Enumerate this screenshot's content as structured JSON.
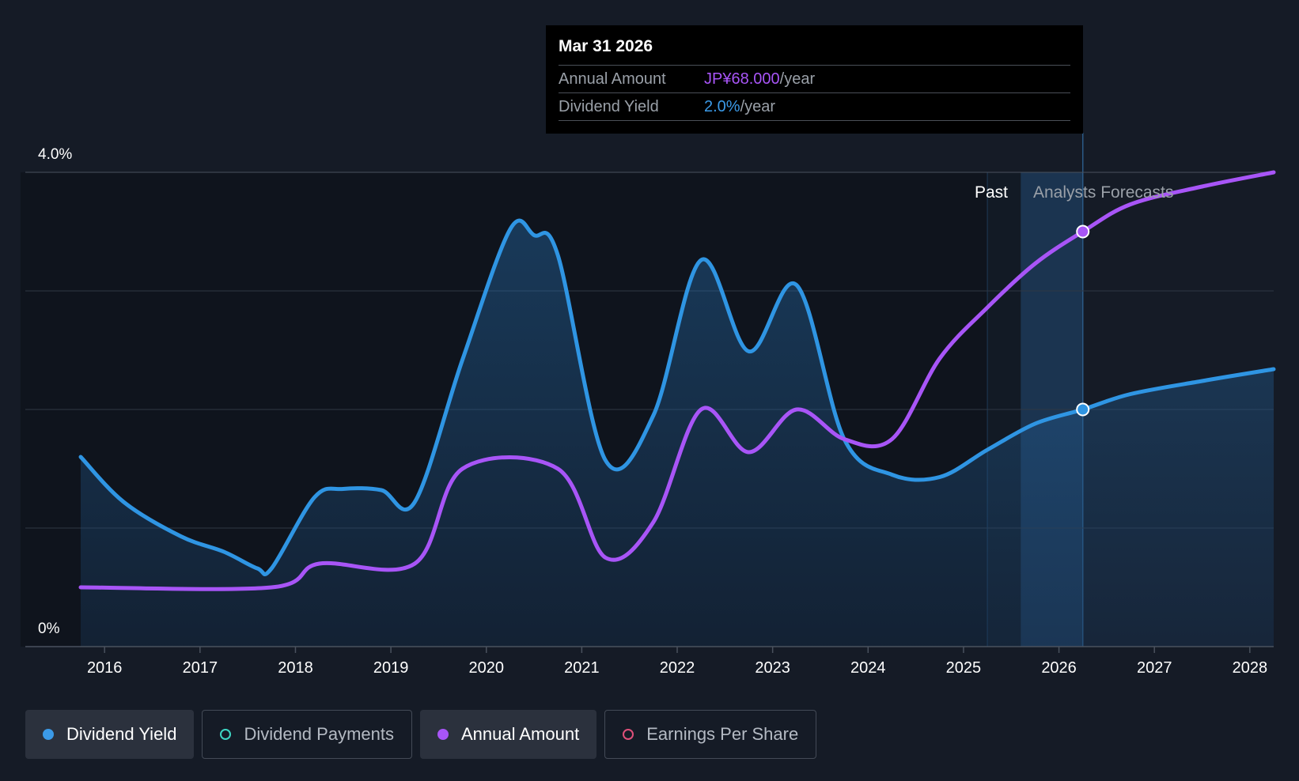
{
  "tooltip": {
    "date": "Mar 31 2026",
    "annual_label": "Annual Amount",
    "annual_value": "JP¥68.000",
    "annual_unit": "/year",
    "yield_label": "Dividend Yield",
    "yield_value": "2.0%",
    "yield_unit": "/year"
  },
  "regions": {
    "past_label": "Past",
    "forecast_label": "Analysts Forecasts"
  },
  "legend": [
    {
      "label": "Dividend Yield",
      "active": true,
      "filled": true,
      "color": "#3b9ae8",
      "name": "legend-dividend-yield"
    },
    {
      "label": "Dividend Payments",
      "active": false,
      "filled": false,
      "color": "#3ed6c4",
      "name": "legend-dividend-payments"
    },
    {
      "label": "Annual Amount",
      "active": true,
      "filled": true,
      "color": "#a855f7",
      "name": "legend-annual-amount"
    },
    {
      "label": "Earnings Per Share",
      "active": false,
      "filled": false,
      "color": "#e0507a",
      "name": "legend-earnings-per-share"
    }
  ],
  "colors": {
    "background": "#151b26",
    "dividend_yield": "#2f95e3",
    "annual_amount": "#a855f7",
    "grid": "#2f3744",
    "axis_text": "#ffffff"
  },
  "chart_data": {
    "type": "line",
    "title": "",
    "x_range": [
      2015.7,
      2028.25
    ],
    "x_ticks": [
      2016,
      2017,
      2018,
      2019,
      2020,
      2021,
      2022,
      2023,
      2024,
      2025,
      2026,
      2027,
      2028
    ],
    "y_range": [
      0,
      4.0
    ],
    "y_labels": [
      {
        "value": 4.0,
        "label": "4.0%"
      },
      {
        "value": 0,
        "label": "0%"
      }
    ],
    "gridlines": [
      4.0,
      3.0,
      2.0,
      1.0
    ],
    "forecast_start": 2025.25,
    "past_band_end": 2025.6,
    "highlight_x": 2026.25,
    "series": [
      {
        "name": "Dividend Yield",
        "unit": "%",
        "area": true,
        "points": [
          [
            2015.75,
            1.6
          ],
          [
            2016.2,
            1.22
          ],
          [
            2016.8,
            0.93
          ],
          [
            2017.25,
            0.8
          ],
          [
            2017.6,
            0.66
          ],
          [
            2017.75,
            0.66
          ],
          [
            2018.2,
            1.26
          ],
          [
            2018.5,
            1.33
          ],
          [
            2018.9,
            1.32
          ],
          [
            2019.25,
            1.22
          ],
          [
            2019.75,
            2.42
          ],
          [
            2020.25,
            3.52
          ],
          [
            2020.5,
            3.47
          ],
          [
            2020.75,
            3.3
          ],
          [
            2021.25,
            1.57
          ],
          [
            2021.75,
            1.95
          ],
          [
            2022.25,
            3.26
          ],
          [
            2022.75,
            2.49
          ],
          [
            2023.25,
            3.05
          ],
          [
            2023.75,
            1.75
          ],
          [
            2024.25,
            1.45
          ],
          [
            2024.75,
            1.43
          ],
          [
            2025.25,
            1.66
          ],
          [
            2025.75,
            1.88
          ],
          [
            2026.25,
            2.0
          ],
          [
            2026.75,
            2.13
          ],
          [
            2027.5,
            2.24
          ],
          [
            2028.25,
            2.34
          ]
        ]
      },
      {
        "name": "Annual Amount",
        "unit": "JP¥",
        "area": false,
        "points": [
          [
            2015.75,
            0.5
          ],
          [
            2017.75,
            0.5
          ],
          [
            2018.25,
            0.7
          ],
          [
            2019.25,
            0.7
          ],
          [
            2019.75,
            1.5
          ],
          [
            2020.75,
            1.5
          ],
          [
            2021.25,
            0.75
          ],
          [
            2021.75,
            1.05
          ],
          [
            2022.25,
            2.0
          ],
          [
            2022.75,
            1.64
          ],
          [
            2023.25,
            2.0
          ],
          [
            2023.75,
            1.75
          ],
          [
            2024.25,
            1.75
          ],
          [
            2024.75,
            2.43
          ],
          [
            2025.25,
            2.86
          ],
          [
            2025.75,
            3.23
          ],
          [
            2026.25,
            3.5
          ],
          [
            2026.75,
            3.73
          ],
          [
            2027.5,
            3.88
          ],
          [
            2028.25,
            4.0
          ]
        ]
      }
    ],
    "highlight_values": {
      "annual_amount": 68.0,
      "dividend_yield": 2.0
    }
  }
}
